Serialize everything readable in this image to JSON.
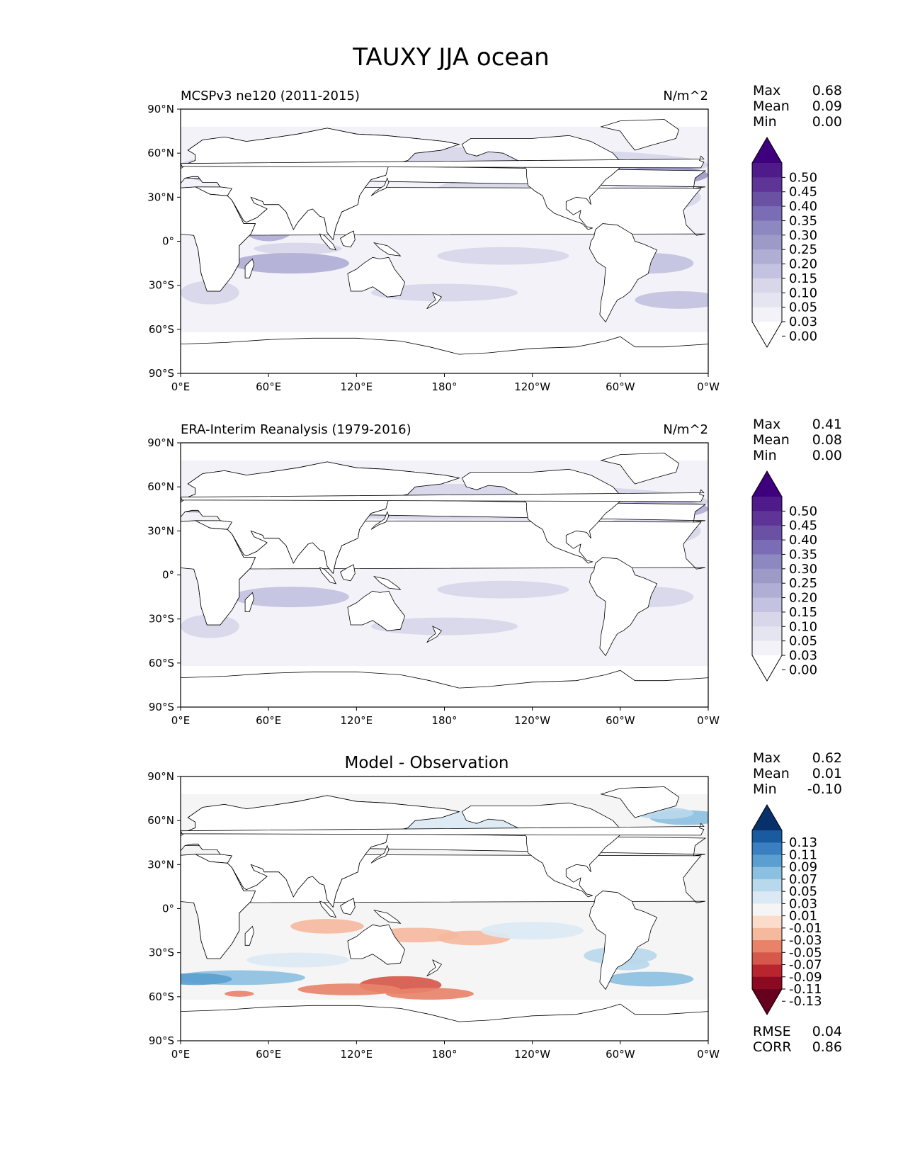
{
  "figure_title": "TAUXY JJA ocean",
  "panels": [
    {
      "id": "model",
      "title_left": "MCSPv3 ne120 (2011-2015)",
      "title_center": "",
      "units": "N/m^2",
      "stats": [
        {
          "label": "Max",
          "value": "0.68"
        },
        {
          "label": "Mean",
          "value": "0.09"
        },
        {
          "label": "Min",
          "value": "0.00"
        }
      ],
      "colorbar": {
        "levels": [
          "0.50",
          "0.45",
          "0.40",
          "0.35",
          "0.30",
          "0.25",
          "0.20",
          "0.15",
          "0.10",
          "0.05",
          "0.03",
          "0.00"
        ],
        "colors": [
          "#3f007d",
          "#4f1a8a",
          "#5e3496",
          "#6a51a3",
          "#7a6db5",
          "#8d89c0",
          "#9e9ac8",
          "#b0aed4",
          "#c3c2e0",
          "#d7d7e9",
          "#e5e5f1",
          "#f3f2f8",
          "#ffffff"
        ]
      },
      "extra_stats": []
    },
    {
      "id": "obs",
      "title_left": "ERA-Interim Reanalysis (1979-2016)",
      "title_center": "",
      "units": "N/m^2",
      "stats": [
        {
          "label": "Max",
          "value": "0.41"
        },
        {
          "label": "Mean",
          "value": "0.08"
        },
        {
          "label": "Min",
          "value": "0.00"
        }
      ],
      "colorbar": {
        "levels": [
          "0.50",
          "0.45",
          "0.40",
          "0.35",
          "0.30",
          "0.25",
          "0.20",
          "0.15",
          "0.10",
          "0.05",
          "0.03",
          "0.00"
        ],
        "colors": [
          "#3f007d",
          "#4f1a8a",
          "#5e3496",
          "#6a51a3",
          "#7a6db5",
          "#8d89c0",
          "#9e9ac8",
          "#b0aed4",
          "#c3c2e0",
          "#d7d7e9",
          "#e5e5f1",
          "#f3f2f8",
          "#ffffff"
        ]
      },
      "extra_stats": []
    },
    {
      "id": "diff",
      "title_left": "",
      "title_center": "Model - Observation",
      "units": "",
      "stats": [
        {
          "label": "Max",
          "value": "0.62"
        },
        {
          "label": "Mean",
          "value": "0.01"
        },
        {
          "label": "Min",
          "value": "-0.10"
        }
      ],
      "colorbar": {
        "levels": [
          "0.13",
          "0.11",
          "0.09",
          "0.07",
          "0.05",
          "0.03",
          "0.01",
          "-0.01",
          "-0.03",
          "-0.05",
          "-0.07",
          "-0.09",
          "-0.11",
          "-0.13"
        ],
        "colors": [
          "#08306b",
          "#1a5a9e",
          "#3a7fbf",
          "#5a9fd0",
          "#8cc0e0",
          "#b8d8ec",
          "#dbe9f4",
          "#f5f5f5",
          "#fbdccb",
          "#f5b99e",
          "#e8836a",
          "#d6584a",
          "#b8252f",
          "#8b0a22",
          "#67001f"
        ]
      },
      "extra_stats": [
        {
          "label": "RMSE",
          "value": "0.04"
        },
        {
          "label": "CORR",
          "value": "0.86"
        }
      ]
    }
  ],
  "axes": {
    "lat_ticks": [
      "90°N",
      "60°N",
      "30°N",
      "0°",
      "30°S",
      "60°S",
      "90°S"
    ],
    "lon_ticks": [
      "0°E",
      "60°E",
      "120°E",
      "180°",
      "120°W",
      "60°W",
      "0°W"
    ]
  }
}
